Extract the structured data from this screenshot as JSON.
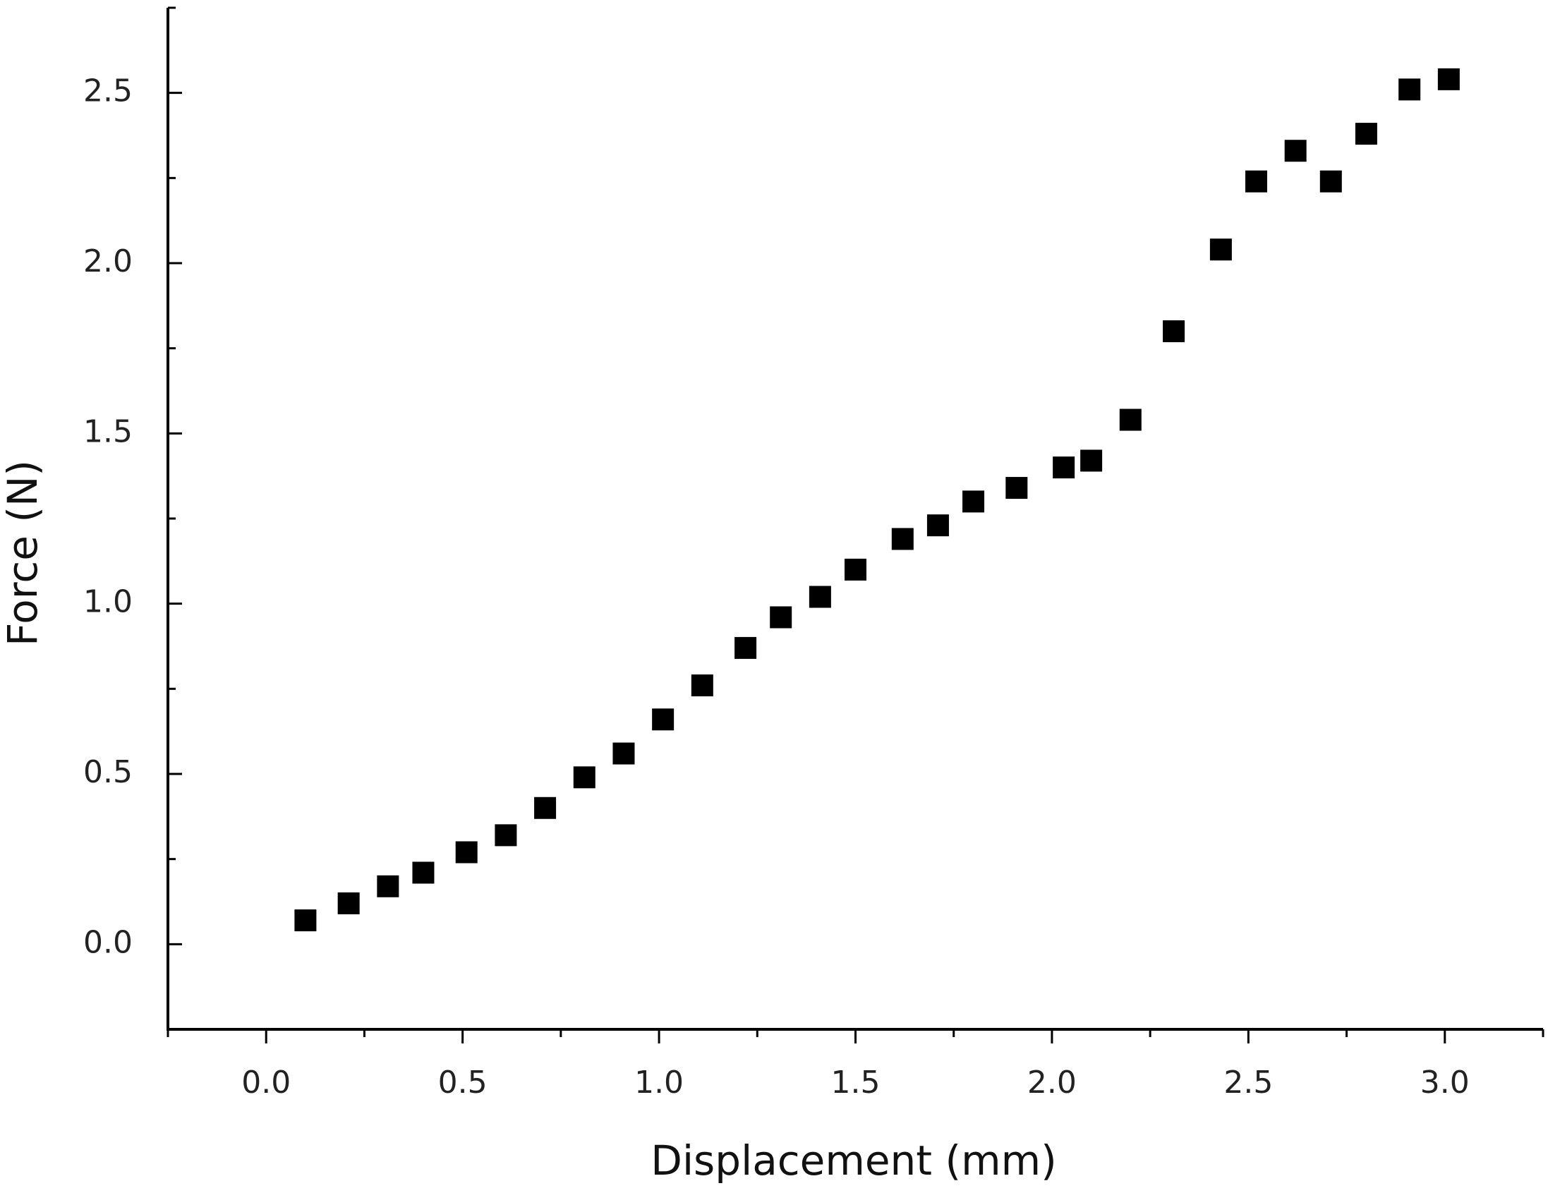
{
  "chart_data": {
    "type": "scatter",
    "x_label": "Displacement (mm)",
    "y_label": "Force (N)",
    "color": "#000000",
    "x": [
      0.1,
      0.21,
      0.31,
      0.4,
      0.51,
      0.61,
      0.71,
      0.81,
      0.91,
      1.01,
      1.11,
      1.22,
      1.31,
      1.41,
      1.5,
      1.62,
      1.71,
      1.8,
      1.91,
      2.03,
      2.1,
      2.2,
      2.31,
      2.43,
      2.52,
      2.62,
      2.71,
      2.8,
      2.91,
      3.01
    ],
    "values": [
      0.07,
      0.12,
      0.17,
      0.21,
      0.27,
      0.32,
      0.4,
      0.49,
      0.56,
      0.66,
      0.76,
      0.87,
      0.96,
      1.02,
      1.1,
      1.19,
      1.23,
      1.3,
      1.34,
      1.4,
      1.42,
      1.54,
      1.8,
      2.04,
      2.24,
      2.33,
      2.24,
      2.38,
      2.51,
      2.54
    ],
    "xlim": [
      -0.25,
      3.25
    ],
    "ylim": [
      -0.25,
      2.75
    ],
    "xticks": [
      {
        "value": 0,
        "label": "0.0"
      },
      {
        "value": 0.5,
        "label": "0.5"
      },
      {
        "value": 1,
        "label": "1.0"
      },
      {
        "value": 1.5,
        "label": "1.5"
      },
      {
        "value": 2,
        "label": "2.0"
      },
      {
        "value": 2.5,
        "label": "2.5"
      },
      {
        "value": 3,
        "label": "3.0"
      }
    ],
    "yticks": [
      {
        "value": 0,
        "label": "0.0"
      },
      {
        "value": 0.5,
        "label": "0.5"
      },
      {
        "value": 1,
        "label": "1.0"
      },
      {
        "value": 1.5,
        "label": "1.5"
      },
      {
        "value": 2,
        "label": "2.0"
      },
      {
        "value": 2.5,
        "label": "2.5"
      }
    ],
    "xminorticks": [
      -0.25,
      0.25,
      0.75,
      1.25,
      1.75,
      2.25,
      2.75,
      3.25
    ],
    "yminorticks": [
      -0.25,
      0.25,
      0.75,
      1.25,
      1.75,
      2.25,
      2.75
    ],
    "grid": false
  }
}
